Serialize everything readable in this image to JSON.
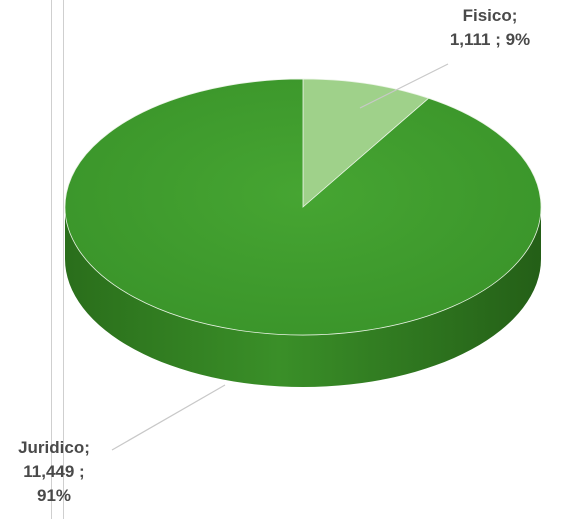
{
  "chart_data": {
    "type": "pie",
    "style": "3d",
    "title": "",
    "slices": [
      {
        "name": "Fisico",
        "value": 1111,
        "value_label": "1,111",
        "percent": 9,
        "percent_label": "9%",
        "color": "#9fd18a"
      },
      {
        "name": "Juridico",
        "value": 11449,
        "value_label": "11,449",
        "percent": 91,
        "percent_label": "91%",
        "color": "#3f9b2c"
      }
    ],
    "side_color": "#2f7a1f",
    "legend": "none"
  },
  "labels": {
    "fisico": {
      "line1": "Fisico;",
      "line2": "1,111 ; 9%"
    },
    "juridico": {
      "line1": "Juridico;",
      "line2": "11,449 ;",
      "line3": "91%"
    }
  }
}
